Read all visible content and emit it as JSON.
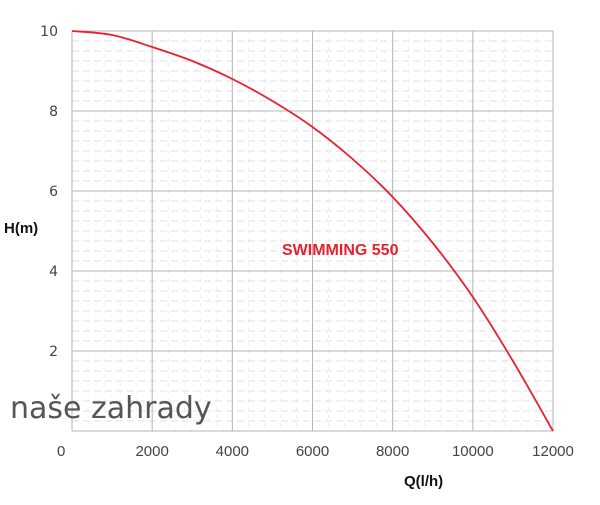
{
  "chart_data": {
    "type": "line",
    "title": "",
    "xlabel": "Q(l/h)",
    "ylabel": "H(m)",
    "xlim": [
      0,
      12000
    ],
    "ylim": [
      0,
      10
    ],
    "x_ticks": [
      "0",
      "2000",
      "4000",
      "6000",
      "8000",
      "10000",
      "12000"
    ],
    "y_ticks": [
      "2",
      "4",
      "6",
      "8",
      "10"
    ],
    "grid": true,
    "series": [
      {
        "name": "SWIMMING 550",
        "color": "#e8212e",
        "x": [
          0,
          1000,
          2000,
          3000,
          4000,
          5000,
          6000,
          7000,
          8000,
          9000,
          10000,
          11000,
          12000
        ],
        "y": [
          10.0,
          9.9,
          9.6,
          9.25,
          8.8,
          8.25,
          7.6,
          6.8,
          5.85,
          4.7,
          3.35,
          1.75,
          0.0
        ]
      }
    ]
  },
  "watermark": "naše zahrady"
}
